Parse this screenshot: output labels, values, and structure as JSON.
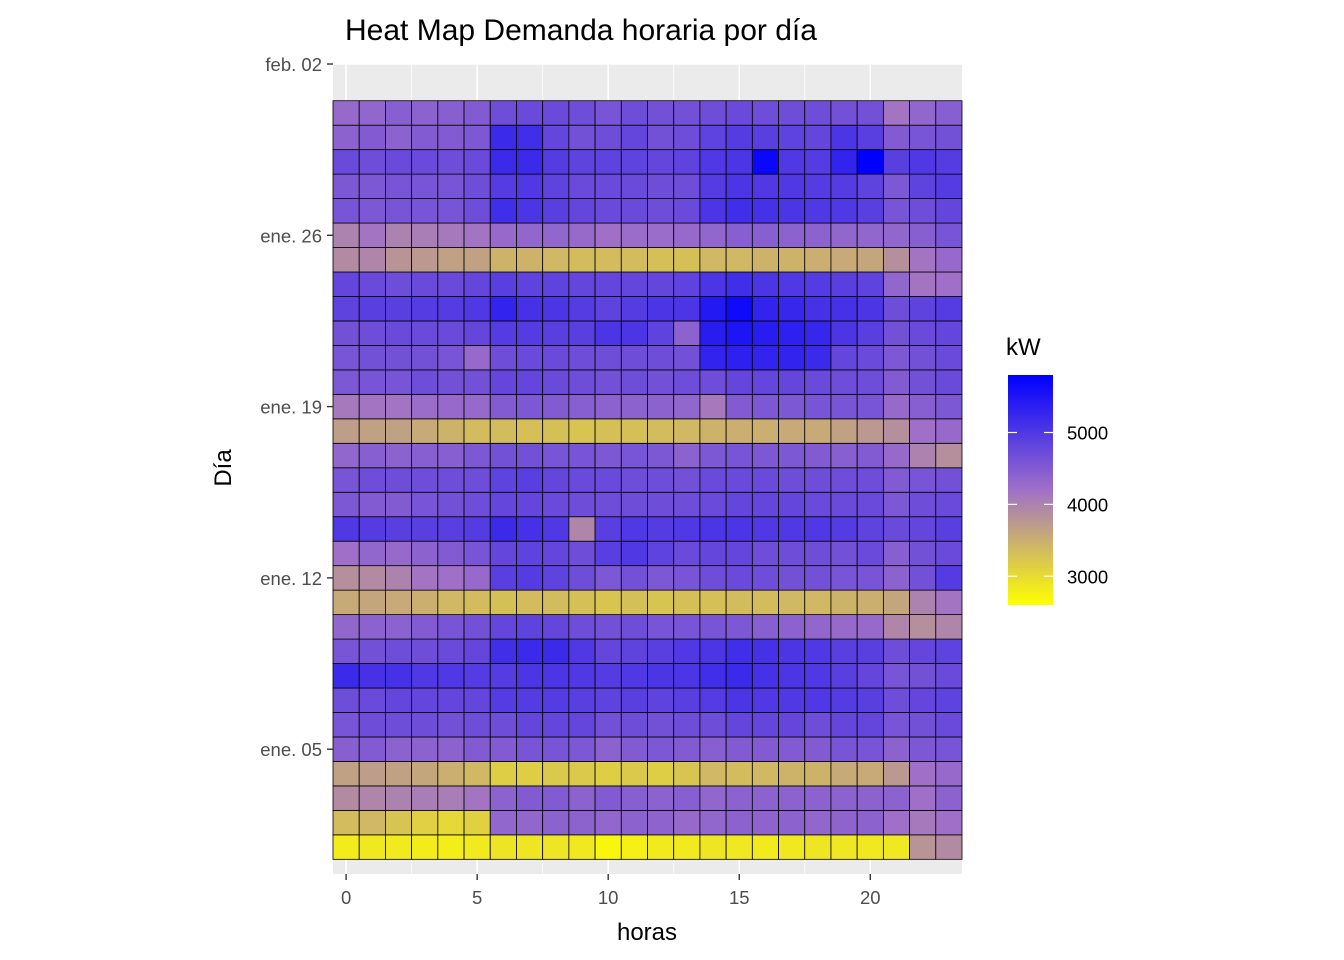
{
  "chart_data": {
    "type": "heatmap",
    "title": "Heat Map Demanda horaria por día",
    "xlabel": "horas",
    "ylabel": "Día",
    "x": [
      0,
      1,
      2,
      3,
      4,
      5,
      6,
      7,
      8,
      9,
      10,
      11,
      12,
      13,
      14,
      15,
      16,
      17,
      18,
      19,
      20,
      21,
      22,
      23
    ],
    "x_ticks": [
      0,
      5,
      10,
      15,
      20
    ],
    "xlim": [
      -0.5,
      23.5
    ],
    "y_ticks": [
      "ene. 05",
      "ene. 12",
      "ene. 19",
      "ene. 26",
      "feb. 02"
    ],
    "y_tick_days": [
      5,
      12,
      19,
      26,
      33
    ],
    "ylim": [
      -0.1,
      33
    ],
    "days": [
      1,
      2,
      3,
      4,
      5,
      6,
      7,
      8,
      9,
      10,
      11,
      12,
      13,
      14,
      15,
      16,
      17,
      18,
      19,
      20,
      21,
      22,
      23,
      24,
      25,
      26,
      27,
      28,
      29,
      30,
      31
    ],
    "legend": {
      "title": "kW",
      "ticks": [
        3000,
        4000,
        5000
      ],
      "range": [
        2600,
        5800
      ],
      "color_low": "#FFFF00",
      "color_mid": "#A070C8",
      "color_high": "#0000FF",
      "position": "right"
    },
    "grid": true,
    "values": [
      [
        2810,
        2850,
        2830,
        2810,
        2790,
        2840,
        2900,
        2880,
        2890,
        2850,
        2700,
        2760,
        2830,
        2840,
        2880,
        2860,
        2830,
        2850,
        2880,
        2870,
        2850,
        2860,
        3800,
        3900
      ],
      [
        3350,
        3400,
        3250,
        3130,
        3040,
        3110,
        4350,
        4350,
        4400,
        4400,
        4350,
        4400,
        4380,
        4300,
        4350,
        4400,
        4380,
        4400,
        4350,
        4380,
        4400,
        4200,
        4100,
        4200
      ],
      [
        3900,
        3950,
        4000,
        4050,
        4050,
        4150,
        4400,
        4500,
        4500,
        4400,
        4500,
        4450,
        4400,
        4450,
        4350,
        4400,
        4400,
        4400,
        4400,
        4400,
        4400,
        4400,
        4200,
        4400
      ],
      [
        3650,
        3700,
        3650,
        3600,
        3500,
        3400,
        3150,
        3150,
        3200,
        3200,
        3150,
        3200,
        3150,
        3250,
        3400,
        3350,
        3400,
        3450,
        3450,
        3550,
        3550,
        3750,
        4200,
        4300
      ],
      [
        4450,
        4500,
        4400,
        4400,
        4400,
        4500,
        4500,
        4600,
        4600,
        4550,
        4400,
        4500,
        4550,
        4500,
        4450,
        4500,
        4500,
        4500,
        4500,
        4600,
        4600,
        4400,
        4550,
        4600
      ],
      [
        4600,
        4700,
        4700,
        4700,
        4650,
        4700,
        4700,
        4800,
        4800,
        4800,
        4650,
        4700,
        4650,
        4700,
        4700,
        4800,
        4800,
        4800,
        4700,
        4800,
        4800,
        4600,
        4650,
        4750
      ],
      [
        4700,
        4750,
        4800,
        4800,
        4800,
        4800,
        4950,
        4950,
        4950,
        4900,
        4850,
        4900,
        4850,
        4900,
        4950,
        5050,
        5000,
        5000,
        5000,
        4950,
        4900,
        4700,
        4800,
        4850
      ],
      [
        5200,
        5100,
        5100,
        5000,
        5000,
        4950,
        4950,
        5050,
        5050,
        5000,
        4950,
        5000,
        5050,
        5050,
        5150,
        5200,
        5100,
        5050,
        5000,
        4900,
        4800,
        4600,
        4650,
        4750
      ],
      [
        4600,
        4650,
        4700,
        4700,
        4750,
        4800,
        5150,
        5200,
        5200,
        5000,
        4800,
        4850,
        4900,
        5000,
        5050,
        5150,
        5100,
        5050,
        5000,
        4900,
        4900,
        4700,
        4800,
        4850
      ],
      [
        4350,
        4400,
        4400,
        4500,
        4600,
        4650,
        4800,
        4850,
        4800,
        4700,
        4650,
        4700,
        4600,
        4600,
        4600,
        4550,
        4450,
        4400,
        4350,
        4300,
        4300,
        3950,
        3850,
        3950
      ],
      [
        3550,
        3600,
        3550,
        3500,
        3400,
        3350,
        3300,
        3350,
        3350,
        3300,
        3250,
        3300,
        3250,
        3300,
        3300,
        3350,
        3350,
        3400,
        3400,
        3450,
        3500,
        3600,
        4000,
        4150
      ],
      [
        3850,
        3900,
        4000,
        4150,
        4200,
        4300,
        4900,
        4950,
        4850,
        4700,
        4550,
        4650,
        4550,
        4600,
        4700,
        4750,
        4700,
        4650,
        4650,
        4600,
        4600,
        4400,
        4650,
        4950
      ],
      [
        4200,
        4350,
        4300,
        4400,
        4500,
        4600,
        4800,
        4850,
        4800,
        4700,
        4900,
        5000,
        4850,
        4750,
        4800,
        4800,
        4700,
        4700,
        4700,
        4650,
        4750,
        4450,
        4650,
        4750
      ],
      [
        5000,
        4950,
        4900,
        4900,
        4900,
        4950,
        5200,
        5100,
        5000,
        3950,
        4900,
        5000,
        4950,
        5000,
        5050,
        5050,
        5000,
        5000,
        5000,
        4950,
        4850,
        4750,
        4800,
        4900
      ],
      [
        4550,
        4500,
        4500,
        4600,
        4650,
        4700,
        4800,
        4800,
        4750,
        4700,
        4700,
        4700,
        4700,
        4700,
        4750,
        4800,
        4800,
        4800,
        4750,
        4750,
        4750,
        4550,
        4700,
        4750
      ],
      [
        4600,
        4700,
        4700,
        4700,
        4700,
        4700,
        4850,
        4900,
        4800,
        4750,
        4750,
        4700,
        4700,
        4650,
        4750,
        4750,
        4750,
        4700,
        4700,
        4700,
        4700,
        4500,
        4600,
        4650
      ],
      [
        4350,
        4450,
        4400,
        4450,
        4450,
        4550,
        4650,
        4650,
        4600,
        4600,
        4550,
        4600,
        4550,
        4400,
        4550,
        4600,
        4550,
        4550,
        4500,
        4450,
        4500,
        4300,
        4000,
        3850
      ],
      [
        3700,
        3650,
        3650,
        3550,
        3450,
        3350,
        3350,
        3300,
        3300,
        3250,
        3300,
        3300,
        3350,
        3400,
        3450,
        3500,
        3500,
        3550,
        3550,
        3650,
        3750,
        3850,
        4200,
        4300
      ],
      [
        4100,
        4150,
        4150,
        4250,
        4300,
        4300,
        4500,
        4550,
        4500,
        4450,
        4400,
        4400,
        4400,
        4350,
        4100,
        4500,
        4550,
        4550,
        4600,
        4600,
        4600,
        4300,
        4450,
        4550
      ],
      [
        4550,
        4600,
        4600,
        4700,
        4650,
        4650,
        4800,
        4800,
        4750,
        4700,
        4650,
        4700,
        4650,
        4700,
        4700,
        4800,
        4800,
        4800,
        4750,
        4700,
        4700,
        4500,
        4650,
        4750
      ],
      [
        4600,
        4650,
        4650,
        4650,
        4600,
        4300,
        4700,
        4750,
        4750,
        4700,
        4700,
        4700,
        4700,
        4650,
        5300,
        5350,
        5300,
        5300,
        5200,
        4800,
        4750,
        4550,
        4650,
        4750
      ],
      [
        4650,
        4700,
        4750,
        4750,
        4750,
        4800,
        4950,
        4950,
        4900,
        4900,
        5050,
        5050,
        4850,
        4400,
        5400,
        5500,
        5400,
        5350,
        5250,
        5050,
        4900,
        4650,
        4750,
        4800
      ],
      [
        4850,
        4900,
        4900,
        4950,
        4950,
        5000,
        5300,
        5100,
        5050,
        4950,
        4850,
        4950,
        5050,
        5050,
        5450,
        5650,
        5300,
        5250,
        5100,
        5100,
        5050,
        4700,
        4850,
        4950
      ],
      [
        4800,
        4750,
        4700,
        4750,
        4750,
        4800,
        4900,
        4850,
        4850,
        4800,
        4800,
        4800,
        4800,
        4850,
        5050,
        5150,
        5050,
        5000,
        4950,
        4900,
        4850,
        4350,
        4150,
        4200
      ],
      [
        3900,
        3950,
        3800,
        3750,
        3650,
        3650,
        3450,
        3450,
        3400,
        3350,
        3350,
        3350,
        3300,
        3300,
        3400,
        3400,
        3450,
        3450,
        3500,
        3550,
        3600,
        3850,
        4150,
        4300
      ],
      [
        4000,
        4150,
        4000,
        4050,
        4100,
        4150,
        4300,
        4350,
        4350,
        4300,
        4200,
        4250,
        4250,
        4300,
        4350,
        4450,
        4450,
        4400,
        4400,
        4350,
        4350,
        4350,
        4450,
        4600
      ],
      [
        4600,
        4550,
        4600,
        4600,
        4600,
        4700,
        5150,
        5050,
        4900,
        4800,
        4750,
        4750,
        4700,
        4750,
        5050,
        5150,
        5100,
        5050,
        5000,
        5000,
        4900,
        4600,
        4700,
        4800
      ],
      [
        4550,
        4550,
        4600,
        4600,
        4600,
        4700,
        4950,
        5000,
        4850,
        4750,
        4750,
        4750,
        4700,
        4700,
        4950,
        5050,
        5000,
        5000,
        4950,
        4950,
        4850,
        4550,
        4850,
        4950
      ],
      [
        4750,
        4700,
        4750,
        4750,
        4700,
        4750,
        5200,
        5200,
        4950,
        4850,
        4850,
        4850,
        4800,
        4850,
        5000,
        5050,
        5700,
        5000,
        4950,
        5300,
        5800,
        4900,
        5000,
        4950
      ],
      [
        4400,
        4500,
        4400,
        4500,
        4500,
        4550,
        5200,
        5150,
        4800,
        4650,
        4700,
        4800,
        4650,
        4700,
        4850,
        4950,
        4900,
        4850,
        4800,
        5050,
        4900,
        4500,
        4600,
        4650
      ],
      [
        4300,
        4350,
        4450,
        4400,
        4450,
        4500,
        4700,
        4750,
        4750,
        4700,
        4600,
        4700,
        4650,
        4650,
        4700,
        4750,
        4700,
        4700,
        4700,
        4650,
        4650,
        4150,
        4350,
        4450
      ]
    ]
  }
}
